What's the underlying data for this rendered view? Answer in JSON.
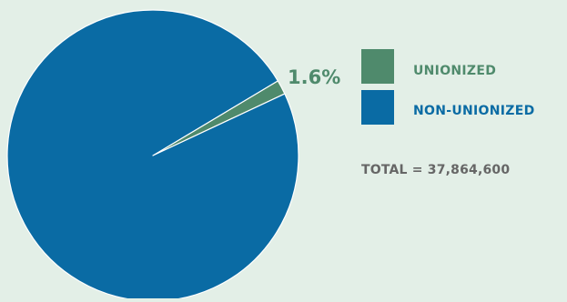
{
  "chart_data": {
    "type": "pie",
    "series": [
      {
        "name": "UNIONIZED",
        "value": 1.6,
        "color": "#4f8a6c"
      },
      {
        "name": "NON-UNIONIZED",
        "value": 98.4,
        "color": "#0a6ba4"
      }
    ],
    "data_labels": [
      {
        "slice": "UNIONIZED",
        "text": "1.6%"
      }
    ],
    "legend_placement": "right",
    "total_text": "TOTAL = 37,864,600",
    "colors": {
      "background": "#e3efe7",
      "unionized": "#4f8a6c",
      "non_unionized": "#0a6ba4",
      "total_text": "#666666"
    }
  }
}
